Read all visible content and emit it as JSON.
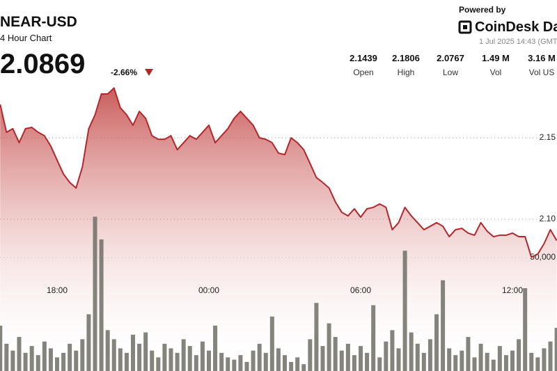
{
  "header": {
    "symbol": "NEAR-USD",
    "period": "4 Hour Chart",
    "price": "2.0869",
    "change": "-2.66%",
    "powered_by": "Powered by",
    "brand": "CoinDesk Dat",
    "timestamp": "1 Jul 2025 14:43 (GMT",
    "stats": [
      {
        "value": "2.1439",
        "label": "Open"
      },
      {
        "value": "2.1806",
        "label": "High"
      },
      {
        "value": "2.0767",
        "label": "Low"
      },
      {
        "value": "1.49 M",
        "label": "Vol"
      },
      {
        "value": "3.16 M",
        "label": "Vol US"
      }
    ]
  },
  "chart_data": [
    {
      "type": "area",
      "color": "#b3262a",
      "grid": true,
      "x": [
        "15:45",
        "16:00",
        "16:15",
        "16:30",
        "16:45",
        "17:00",
        "17:15",
        "17:30",
        "17:45",
        "18:00",
        "18:15",
        "18:30",
        "18:45",
        "19:00",
        "19:15",
        "19:30",
        "19:45",
        "20:00",
        "20:15",
        "20:30",
        "20:45",
        "21:00",
        "21:15",
        "21:30",
        "21:45",
        "22:00",
        "22:15",
        "22:30",
        "22:45",
        "23:00",
        "23:15",
        "23:30",
        "23:45",
        "00:00",
        "00:15",
        "00:30",
        "00:45",
        "01:00",
        "01:15",
        "01:30",
        "01:45",
        "02:00",
        "02:15",
        "02:30",
        "02:45",
        "03:00",
        "03:15",
        "03:30",
        "03:45",
        "04:00",
        "04:15",
        "04:30",
        "04:45",
        "05:00",
        "05:15",
        "05:30",
        "05:45",
        "06:00",
        "06:15",
        "06:30",
        "06:45",
        "07:00",
        "07:15",
        "07:30",
        "07:45",
        "08:00",
        "08:15",
        "08:30",
        "08:45",
        "09:00",
        "09:15",
        "09:30",
        "09:45",
        "10:00",
        "10:15",
        "10:30",
        "10:45",
        "11:00",
        "11:15",
        "11:30",
        "11:45",
        "12:00",
        "12:15",
        "12:30",
        "12:45",
        "13:00",
        "13:15",
        "13:30",
        "13:45"
      ],
      "values": [
        2.1705,
        2.1534,
        2.1556,
        2.147,
        2.1556,
        2.1564,
        2.1534,
        2.1513,
        2.1449,
        2.1363,
        2.1278,
        2.1226,
        2.1192,
        2.1321,
        2.1556,
        2.1641,
        2.1769,
        2.1769,
        2.1806,
        2.1684,
        2.1641,
        2.1577,
        2.1662,
        2.162,
        2.1513,
        2.1491,
        2.1491,
        2.1513,
        2.1427,
        2.147,
        2.1513,
        2.1491,
        2.1534,
        2.1577,
        2.147,
        2.1513,
        2.1556,
        2.162,
        2.1662,
        2.162,
        2.1577,
        2.15,
        2.1491,
        2.147,
        2.1406,
        2.1397,
        2.15,
        2.147,
        2.1427,
        2.1342,
        2.1256,
        2.1226,
        2.1192,
        2.1107,
        2.1043,
        2.1021,
        2.1064,
        2.1013,
        2.1064,
        2.1073,
        2.1094,
        2.1073,
        2.0936,
        2.0979,
        2.1073,
        2.1021,
        2.0979,
        2.0936,
        2.0957,
        2.0979,
        2.0957,
        2.0893,
        2.0936,
        2.0944,
        2.0915,
        2.0902,
        2.0979,
        2.0927,
        2.0893,
        2.0902,
        2.0902,
        2.0915,
        2.0893,
        2.0893,
        2.0767,
        2.0786,
        2.085,
        2.0936,
        2.0869
      ],
      "ylim": [
        2.05,
        2.2
      ],
      "yticks": [
        2.15,
        {
          "value": 2.1,
          "label": "2.10"
        }
      ],
      "xticks": [
        "18:00",
        "00:00",
        "06:00",
        "12:00"
      ]
    },
    {
      "type": "bar",
      "color": "#6f6f66",
      "values": [
        20000,
        12000,
        9000,
        15000,
        8000,
        11000,
        7000,
        13000,
        10000,
        6000,
        8000,
        12000,
        9000,
        14000,
        25000,
        68000,
        58000,
        18000,
        14000,
        10000,
        8000,
        16000,
        12000,
        17000,
        9000,
        6000,
        12000,
        10000,
        8000,
        14000,
        11000,
        7000,
        13000,
        9000,
        20000,
        8000,
        6000,
        5000,
        7000,
        4000,
        9000,
        12000,
        8000,
        24000,
        10000,
        7000,
        4000,
        6000,
        3000,
        14000,
        30000,
        11000,
        21000,
        15000,
        9000,
        12000,
        7000,
        11000,
        8000,
        29000,
        6000,
        13000,
        18000,
        10000,
        53000,
        17000,
        12000,
        8000,
        14000,
        25000,
        40000,
        10000,
        7000,
        9000,
        15000,
        6000,
        12000,
        8000,
        5000,
        11000,
        7000,
        9000,
        14000,
        36500,
        8000,
        6000,
        10000,
        13000,
        19000
      ],
      "ylim": [
        0,
        100000
      ],
      "yticks": [
        {
          "value": 50000,
          "label": "50,000"
        }
      ]
    }
  ]
}
